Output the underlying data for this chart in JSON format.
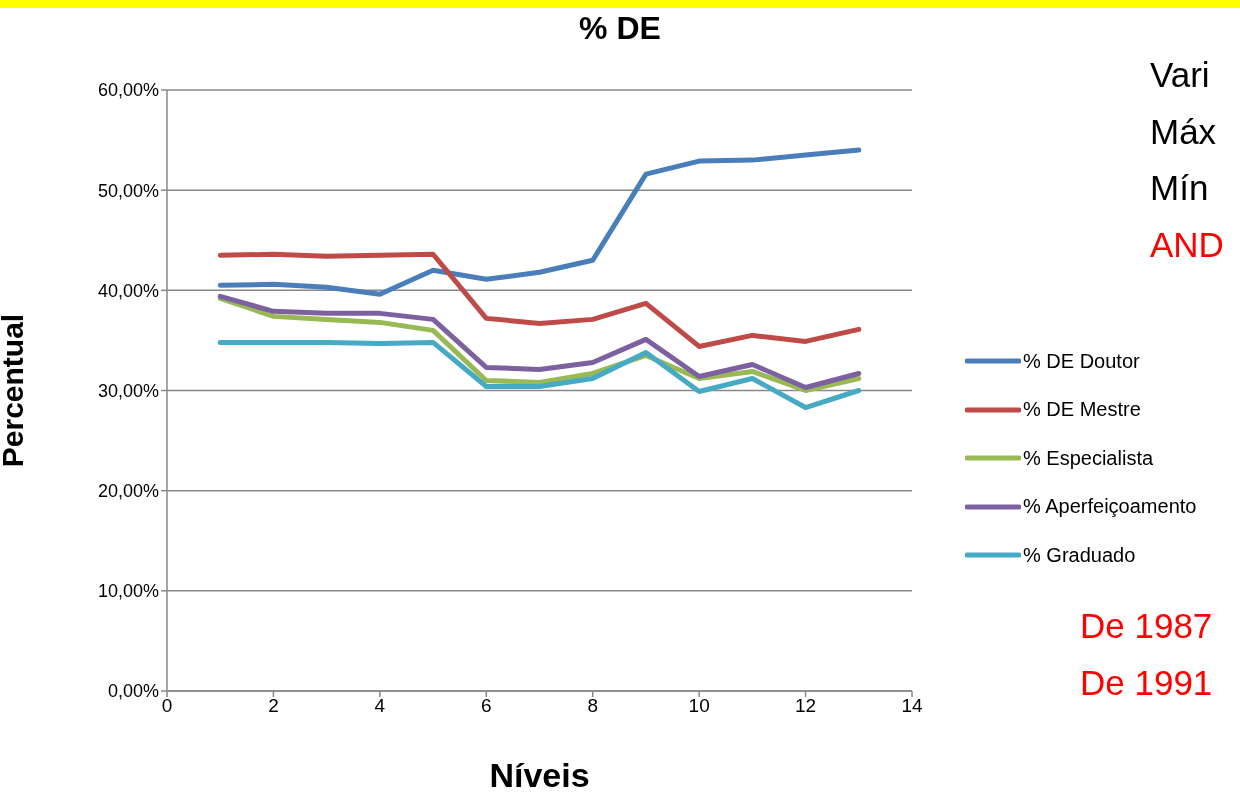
{
  "chart_data": {
    "type": "line",
    "title": "% DE",
    "xlabel": "Níveis",
    "ylabel": "Percentual",
    "x": [
      1,
      2,
      3,
      4,
      5,
      6,
      7,
      8,
      9,
      10,
      11,
      12,
      13
    ],
    "series": [
      {
        "name": "% DE Doutor",
        "color": "#4a7ebb",
        "values": [
          40.5,
          40.6,
          40.3,
          39.6,
          42.0,
          41.1,
          41.8,
          43.0,
          51.6,
          52.9,
          53.0,
          53.5,
          54.0
        ]
      },
      {
        "name": "% DE Mestre",
        "color": "#be4b48",
        "values": [
          43.5,
          43.6,
          43.4,
          43.5,
          43.6,
          37.2,
          36.7,
          37.1,
          38.7,
          34.4,
          35.5,
          34.9,
          36.1
        ]
      },
      {
        "name": "% Especialista",
        "color": "#98b954",
        "values": [
          39.2,
          37.4,
          37.1,
          36.8,
          36.0,
          31.0,
          30.8,
          31.7,
          33.5,
          31.2,
          31.9,
          30.0,
          31.2
        ]
      },
      {
        "name": "% Aperfeiçoamento",
        "color": "#7d60a0",
        "values": [
          39.4,
          37.9,
          37.7,
          37.7,
          37.1,
          32.3,
          32.1,
          32.8,
          35.1,
          31.4,
          32.6,
          30.3,
          31.7
        ]
      },
      {
        "name": "% Graduado",
        "color": "#46aac5",
        "values": [
          34.8,
          34.8,
          34.8,
          34.7,
          34.8,
          30.4,
          30.4,
          31.2,
          33.8,
          29.9,
          31.2,
          28.3,
          30.0
        ]
      }
    ],
    "xlim": [
      0,
      14
    ],
    "xticks": [
      0,
      2,
      4,
      6,
      8,
      10,
      12,
      14
    ],
    "ylim": [
      0,
      60
    ],
    "yticks": [
      {
        "value": 0,
        "label": "0,00%"
      },
      {
        "value": 10,
        "label": "10,00%"
      },
      {
        "value": 20,
        "label": "20,00%"
      },
      {
        "value": 30,
        "label": "30,00%"
      },
      {
        "value": 40,
        "label": "40,00%"
      },
      {
        "value": 50,
        "label": "50,00%"
      },
      {
        "value": 60,
        "label": "60,00%"
      }
    ],
    "grid": "y",
    "legend": "right",
    "marker": "none",
    "line_style": "solid",
    "annotations": [
      "Vari",
      "Máx",
      "Mín",
      "AND",
      "De 1987",
      "De 1991"
    ]
  }
}
